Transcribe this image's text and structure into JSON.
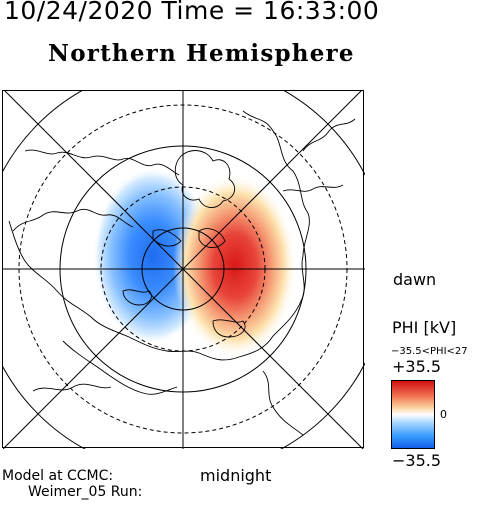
{
  "header": {
    "datetime": "10/24/2020 Time = 16:33:00",
    "hemisphere": "Northern Hemisphere"
  },
  "map": {
    "noon_label": "",
    "dawn_label": "dawn",
    "midnight_label": "midnight",
    "grid_latitudes": [
      80,
      70,
      60,
      50,
      40
    ],
    "meridian_spacing_deg": 45
  },
  "model": {
    "line1": "Model at CCMC:",
    "line2": "Weimer_05 Run:"
  },
  "colorbar": {
    "title": "PHI [kV]",
    "range_text": "−35.5<PHI<27",
    "max_label": "+35.5",
    "mid_label": "0",
    "min_label": "−35.5",
    "colors": {
      "positive": "#d01010",
      "neutral": "#ffffff",
      "negative": "#1060e8"
    }
  }
}
